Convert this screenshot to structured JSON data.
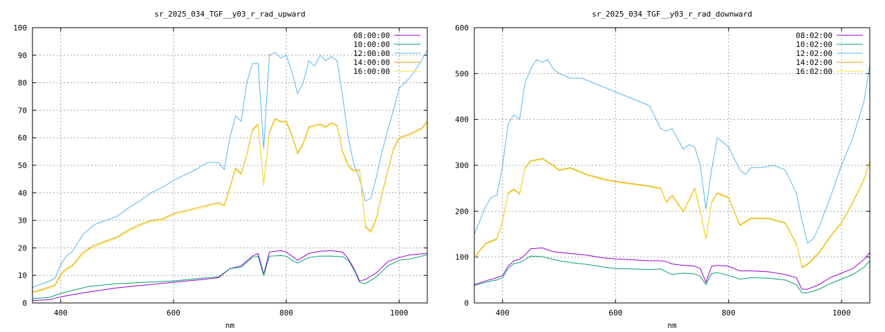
{
  "chart_data": [
    {
      "type": "line",
      "title": "sr_2025_034_TGF__y03_r_rad_upward",
      "xlabel": "nm",
      "ylabel": "",
      "xlim": [
        350,
        1050
      ],
      "ylim": [
        0,
        100
      ],
      "xticks": [
        400,
        600,
        800,
        1000
      ],
      "yticks": [
        0,
        10,
        20,
        30,
        40,
        50,
        60,
        70,
        80,
        90,
        100
      ],
      "grid": true,
      "legend_position": "top-right",
      "series": [
        {
          "name": "08:00:00",
          "color": "#9400d3",
          "x": [
            350,
            380,
            400,
            420,
            450,
            500,
            550,
            600,
            650,
            680,
            700,
            720,
            740,
            750,
            760,
            770,
            790,
            800,
            810,
            820,
            840,
            860,
            880,
            900,
            910,
            920,
            930,
            940,
            960,
            980,
            1000,
            1020,
            1050
          ],
          "y": [
            0.8,
            1.2,
            2.2,
            3,
            4,
            5.5,
            6.5,
            7.5,
            8.5,
            9.2,
            12.5,
            13.5,
            17,
            18,
            10.5,
            18.5,
            19,
            18.5,
            17,
            15.5,
            18,
            18.8,
            19,
            18.5,
            16,
            12.5,
            8,
            8.5,
            11,
            15,
            16.5,
            17.5,
            18
          ]
        },
        {
          "name": "10:00:00",
          "color": "#009e73",
          "x": [
            350,
            380,
            400,
            420,
            450,
            500,
            550,
            600,
            650,
            680,
            700,
            720,
            740,
            750,
            760,
            770,
            790,
            800,
            810,
            820,
            840,
            860,
            880,
            900,
            910,
            920,
            930,
            940,
            960,
            980,
            1000,
            1020,
            1050
          ],
          "y": [
            1.5,
            2,
            3.5,
            4.5,
            6,
            7,
            7.5,
            8,
            9,
            9.5,
            12.5,
            13,
            16.5,
            17,
            10,
            17,
            17.2,
            17,
            15.5,
            14.5,
            16.5,
            17,
            17,
            16.8,
            15.5,
            12,
            7.5,
            7,
            9.5,
            13.5,
            15.5,
            16,
            17.5
          ]
        },
        {
          "name": "12:00:00",
          "color": "#56b4e9",
          "x": [
            350,
            360,
            375,
            390,
            400,
            410,
            420,
            440,
            460,
            480,
            500,
            520,
            540,
            560,
            580,
            600,
            620,
            640,
            660,
            680,
            690,
            700,
            710,
            720,
            730,
            740,
            750,
            760,
            770,
            780,
            790,
            800,
            810,
            820,
            830,
            840,
            850,
            860,
            870,
            880,
            890,
            900,
            910,
            920,
            930,
            940,
            950,
            960,
            970,
            980,
            990,
            1000,
            1020,
            1040,
            1050
          ],
          "y": [
            5.5,
            6.5,
            7.5,
            9,
            14,
            17,
            18.5,
            25,
            28.5,
            30,
            31.5,
            34.5,
            37,
            40,
            42,
            44.5,
            46.5,
            48.5,
            51,
            51,
            48.5,
            60,
            68,
            66,
            80,
            87,
            87,
            56,
            90,
            91,
            89,
            90,
            84,
            76,
            80,
            88,
            86,
            90,
            88,
            89.5,
            88,
            75,
            60,
            50,
            45,
            37,
            38,
            46,
            55,
            63,
            70,
            78,
            82,
            88,
            92
          ]
        },
        {
          "name": "14:00:00",
          "color": "#e69f00",
          "x": [
            350,
            360,
            375,
            390,
            400,
            410,
            420,
            440,
            460,
            480,
            500,
            520,
            540,
            560,
            580,
            600,
            620,
            640,
            660,
            680,
            690,
            700,
            710,
            720,
            730,
            740,
            750,
            760,
            770,
            780,
            790,
            800,
            810,
            820,
            830,
            840,
            850,
            860,
            870,
            880,
            890,
            900,
            910,
            920,
            930,
            940,
            950,
            960,
            970,
            980,
            990,
            1000,
            1020,
            1040,
            1050
          ],
          "y": [
            4,
            4.5,
            5.5,
            6.5,
            10.5,
            12.5,
            13.5,
            18.5,
            21,
            22.5,
            24,
            26.5,
            28.5,
            30,
            30.5,
            32.5,
            33.5,
            34.5,
            35.5,
            36.5,
            35.5,
            42,
            49,
            47,
            54,
            63,
            65,
            43,
            62,
            67,
            66,
            66,
            61,
            54.5,
            58,
            64,
            64.5,
            65,
            64,
            65.5,
            64.5,
            55,
            50,
            48,
            48.5,
            28,
            26,
            31,
            40,
            48,
            56,
            60,
            61.5,
            63.5,
            66
          ]
        },
        {
          "name": "16:00:00",
          "color": "#f0e442",
          "x": [
            350,
            360,
            375,
            390,
            400,
            410,
            420,
            440,
            460,
            480,
            500,
            520,
            540,
            560,
            580,
            600,
            620,
            640,
            660,
            680,
            690,
            700,
            710,
            720,
            730,
            740,
            750,
            760,
            770,
            780,
            790,
            800,
            810,
            820,
            830,
            840,
            850,
            860,
            870,
            880,
            890,
            900,
            910,
            920,
            930,
            940,
            950,
            960,
            970,
            980,
            990,
            1000,
            1020,
            1040,
            1050
          ],
          "y": [
            3.8,
            4.2,
            5,
            6,
            10,
            12,
            13,
            17.8,
            20.5,
            22,
            23.5,
            26,
            28,
            29.5,
            30,
            32,
            33,
            34,
            35,
            36,
            35,
            41.5,
            48.5,
            46.5,
            53.5,
            62.5,
            64.5,
            42.5,
            61.5,
            66.5,
            65.5,
            65.5,
            60.5,
            54,
            57.5,
            63.5,
            64,
            64.5,
            63.5,
            65,
            64,
            54.5,
            49.5,
            47.5,
            48,
            27.5,
            25.5,
            30.5,
            39.5,
            47.5,
            55.5,
            59.5,
            61,
            63,
            65.5
          ]
        }
      ]
    },
    {
      "type": "line",
      "title": "sr_2025_034_TGF__y03_r_rad_downward",
      "xlabel": "nm",
      "ylabel": "",
      "xlim": [
        350,
        1050
      ],
      "ylim": [
        0,
        600
      ],
      "xticks": [
        400,
        600,
        800,
        1000
      ],
      "yticks": [
        0,
        100,
        200,
        300,
        400,
        500,
        600
      ],
      "grid": true,
      "legend_position": "top-right",
      "series": [
        {
          "name": "08:02:00",
          "color": "#9400d3",
          "x": [
            350,
            370,
            390,
            400,
            410,
            420,
            430,
            440,
            450,
            470,
            490,
            500,
            520,
            550,
            580,
            600,
            630,
            660,
            680,
            690,
            700,
            720,
            740,
            750,
            760,
            770,
            780,
            800,
            820,
            840,
            870,
            900,
            920,
            930,
            940,
            960,
            980,
            1000,
            1020,
            1040,
            1050
          ],
          "y": [
            40,
            48,
            55,
            60,
            80,
            92,
            95,
            105,
            118,
            120,
            112,
            110,
            108,
            104,
            98,
            96,
            94,
            92,
            92,
            90,
            85,
            82,
            80,
            75,
            45,
            80,
            82,
            80,
            70,
            70,
            68,
            62,
            55,
            30,
            30,
            40,
            55,
            65,
            75,
            95,
            110
          ]
        },
        {
          "name": "10:02:00",
          "color": "#009e73",
          "x": [
            350,
            370,
            390,
            400,
            410,
            420,
            430,
            440,
            450,
            470,
            490,
            500,
            520,
            550,
            580,
            600,
            630,
            660,
            680,
            690,
            700,
            720,
            740,
            750,
            760,
            770,
            780,
            800,
            820,
            840,
            870,
            900,
            920,
            930,
            940,
            960,
            980,
            1000,
            1020,
            1040,
            1050
          ],
          "y": [
            38,
            45,
            50,
            55,
            75,
            86,
            88,
            95,
            102,
            101,
            95,
            92,
            88,
            84,
            78,
            75,
            74,
            73,
            74,
            68,
            62,
            65,
            63,
            58,
            40,
            64,
            66,
            60,
            52,
            55,
            54,
            50,
            40,
            22,
            22,
            30,
            42,
            52,
            62,
            78,
            92
          ]
        },
        {
          "name": "12:02:00",
          "color": "#56b4e9",
          "x": [
            350,
            360,
            370,
            380,
            390,
            400,
            410,
            420,
            430,
            440,
            450,
            460,
            470,
            480,
            490,
            500,
            520,
            540,
            560,
            580,
            600,
            620,
            640,
            660,
            680,
            690,
            700,
            720,
            730,
            740,
            750,
            760,
            770,
            780,
            800,
            820,
            830,
            840,
            860,
            880,
            900,
            920,
            930,
            940,
            950,
            960,
            980,
            1000,
            1020,
            1040,
            1050
          ],
          "y": [
            150,
            180,
            210,
            230,
            235,
            300,
            390,
            410,
            400,
            480,
            510,
            530,
            525,
            530,
            510,
            500,
            490,
            490,
            480,
            470,
            460,
            450,
            440,
            430,
            380,
            375,
            380,
            335,
            345,
            340,
            300,
            205,
            290,
            360,
            340,
            290,
            280,
            295,
            295,
            300,
            290,
            240,
            180,
            130,
            140,
            165,
            230,
            300,
            360,
            440,
            520
          ]
        },
        {
          "name": "14:02:00",
          "color": "#e69f00",
          "x": [
            350,
            370,
            390,
            400,
            410,
            420,
            430,
            440,
            450,
            470,
            490,
            500,
            520,
            550,
            580,
            600,
            630,
            660,
            680,
            690,
            700,
            720,
            740,
            750,
            760,
            770,
            780,
            800,
            820,
            840,
            870,
            900,
            920,
            930,
            940,
            960,
            980,
            1000,
            1020,
            1040,
            1050
          ],
          "y": [
            100,
            130,
            140,
            180,
            240,
            248,
            238,
            295,
            310,
            315,
            300,
            290,
            295,
            280,
            270,
            265,
            260,
            255,
            250,
            220,
            235,
            200,
            250,
            200,
            140,
            220,
            240,
            230,
            170,
            185,
            185,
            175,
            130,
            78,
            85,
            110,
            145,
            175,
            220,
            270,
            310
          ]
        },
        {
          "name": "16:02:00",
          "color": "#f0e442",
          "x": [
            350,
            370,
            390,
            400,
            410,
            420,
            430,
            440,
            450,
            470,
            490,
            500,
            520,
            550,
            580,
            600,
            630,
            660,
            680,
            690,
            700,
            720,
            740,
            750,
            760,
            770,
            780,
            800,
            820,
            840,
            870,
            900,
            920,
            930,
            940,
            960,
            980,
            1000,
            1020,
            1040,
            1050
          ],
          "y": [
            98,
            128,
            138,
            178,
            238,
            246,
            236,
            293,
            308,
            313,
            298,
            288,
            293,
            278,
            268,
            263,
            258,
            253,
            248,
            218,
            233,
            198,
            248,
            198,
            138,
            218,
            238,
            228,
            168,
            183,
            183,
            173,
            128,
            76,
            83,
            108,
            143,
            173,
            218,
            268,
            308
          ]
        }
      ]
    }
  ]
}
